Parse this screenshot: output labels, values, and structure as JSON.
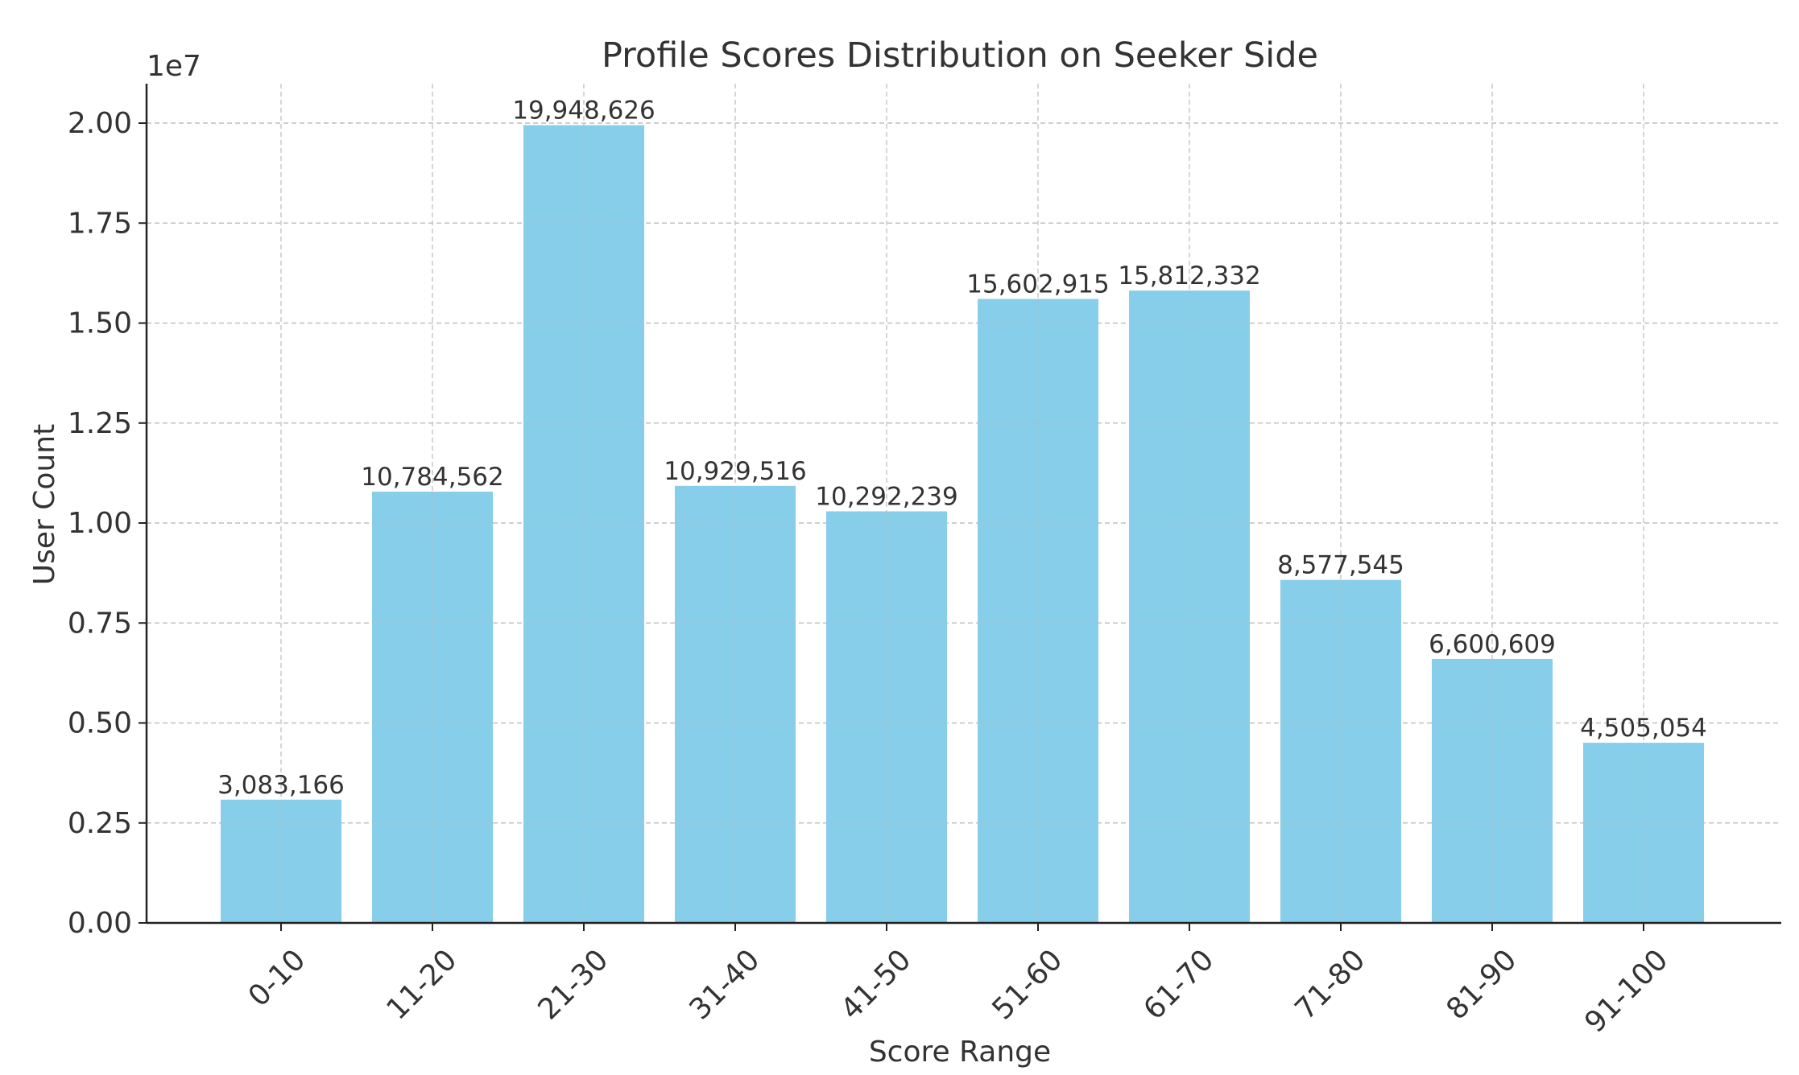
{
  "chart_data": {
    "type": "bar",
    "title": "Profile Scores Distribution on Seeker Side",
    "xlabel": "Score Range",
    "ylabel": "User Count",
    "y_scale_label": "1e7",
    "categories": [
      "0-10",
      "11-20",
      "21-30",
      "31-40",
      "41-50",
      "51-60",
      "61-70",
      "71-80",
      "81-90",
      "91-100"
    ],
    "values": [
      3083166,
      10784562,
      19948626,
      10929516,
      10292239,
      15602915,
      15812332,
      8577545,
      6600609,
      4505054
    ],
    "value_labels": [
      "3,083,166",
      "10,784,562",
      "19,948,626",
      "10,929,516",
      "10,292,239",
      "15,602,915",
      "15,812,332",
      "8,577,545",
      "6,600,609",
      "4,505,054"
    ],
    "y_ticks": [
      0,
      2500000,
      5000000,
      7500000,
      10000000,
      12500000,
      15000000,
      17500000,
      20000000
    ],
    "y_tick_labels": [
      "0.00",
      "0.25",
      "0.50",
      "0.75",
      "1.00",
      "1.25",
      "1.50",
      "1.75",
      "2.00"
    ],
    "ylim": [
      0,
      20946057
    ],
    "grid": true,
    "bar_color": "#87ceeb",
    "text_color": "#333333",
    "grid_color": "#c8c8c8"
  }
}
